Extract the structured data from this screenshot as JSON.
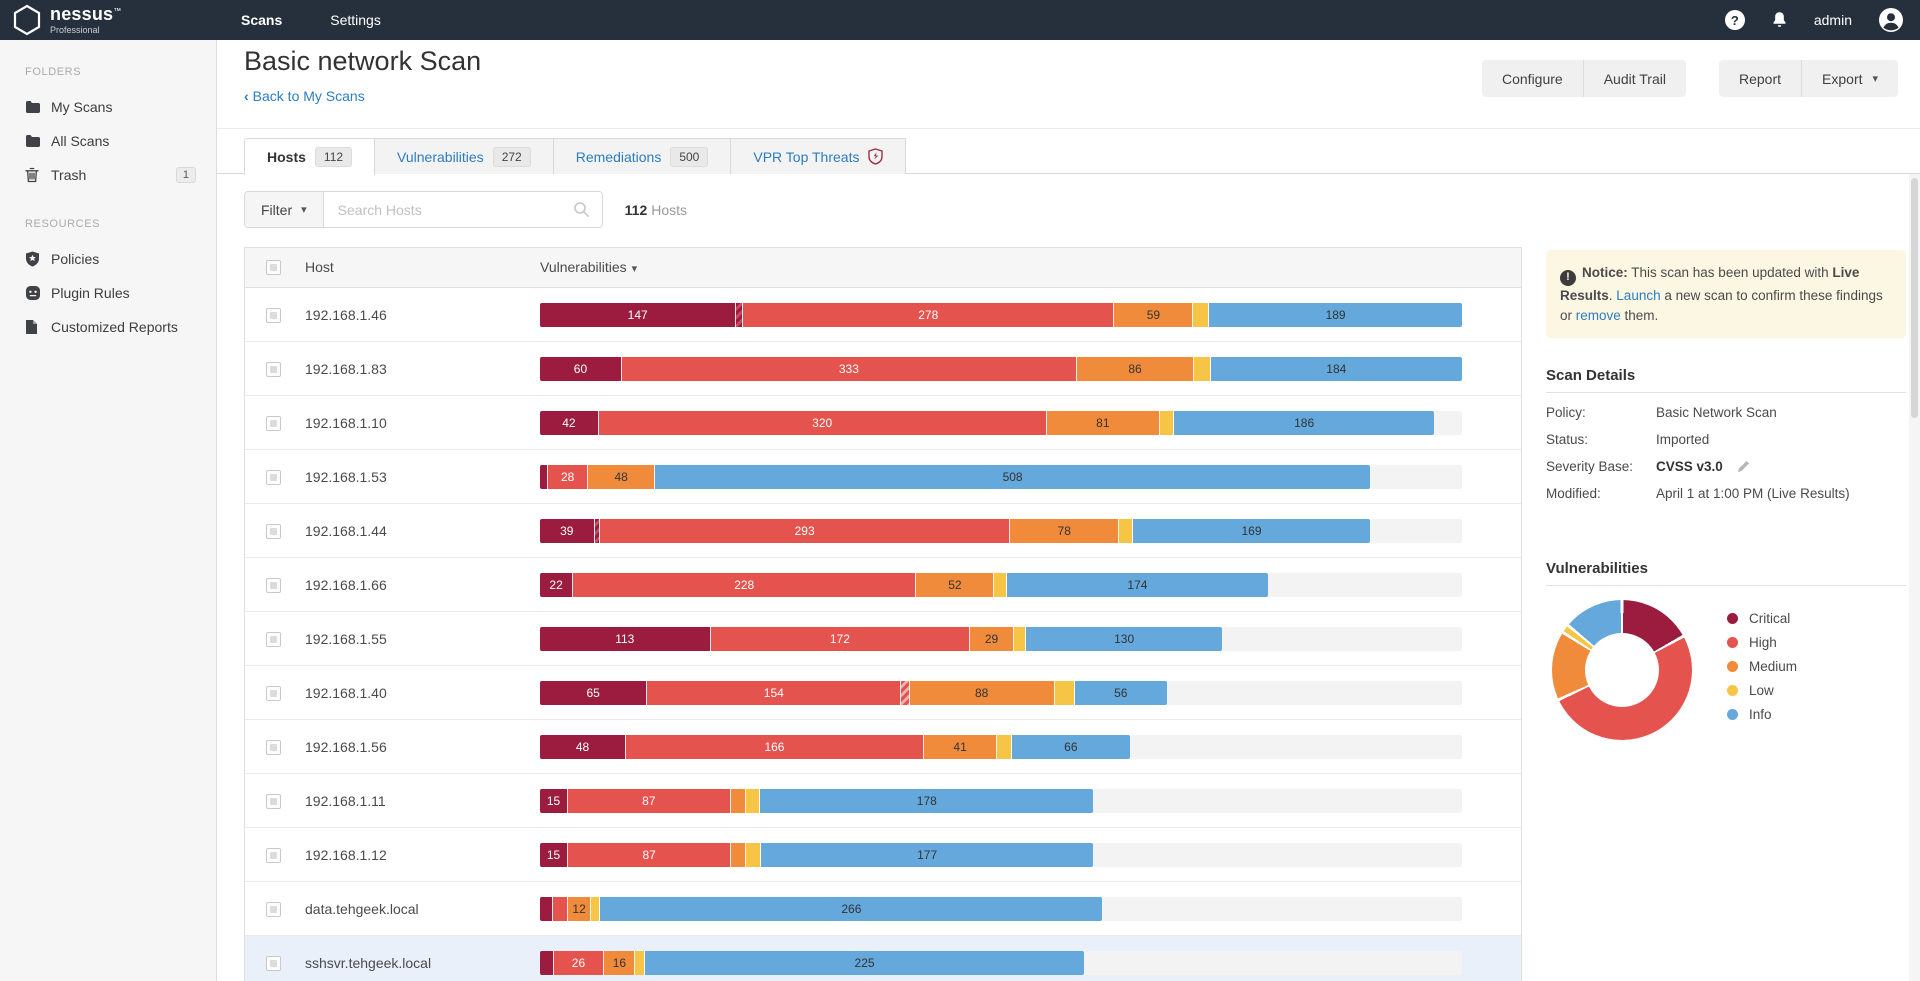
{
  "navbar": {
    "brand": "nessus",
    "brand_mark": "™",
    "brand_sub": "Professional",
    "links": [
      {
        "label": "Scans",
        "active": true
      },
      {
        "label": "Settings",
        "active": false
      }
    ],
    "username": "admin"
  },
  "sidebar": {
    "sections": [
      {
        "label": "FOLDERS",
        "items": [
          {
            "icon": "folder-icon",
            "label": "My Scans",
            "badge": ""
          },
          {
            "icon": "folder-icon",
            "label": "All Scans",
            "badge": ""
          },
          {
            "icon": "trash-icon",
            "label": "Trash",
            "badge": "1"
          }
        ]
      },
      {
        "label": "RESOURCES",
        "items": [
          {
            "icon": "shield-star-icon",
            "label": "Policies",
            "badge": ""
          },
          {
            "icon": "plug-icon",
            "label": "Plugin Rules",
            "badge": ""
          },
          {
            "icon": "document-icon",
            "label": "Customized Reports",
            "badge": ""
          }
        ]
      }
    ]
  },
  "header": {
    "title": "Basic network Scan",
    "back_chevron": "‹",
    "back_label": "Back to My Scans",
    "buttons_group1": [
      "Configure",
      "Audit Trail"
    ],
    "buttons_group2": [
      "Report",
      "Export"
    ],
    "export_caret": "▾"
  },
  "tabs": [
    {
      "label": "Hosts",
      "badge": "112",
      "active": true,
      "icon": ""
    },
    {
      "label": "Vulnerabilities",
      "badge": "272",
      "active": false,
      "icon": ""
    },
    {
      "label": "Remediations",
      "badge": "500",
      "active": false,
      "icon": ""
    },
    {
      "label": "VPR Top Threats",
      "badge": "",
      "active": false,
      "icon": "vpr-shield-icon"
    }
  ],
  "filter_bar": {
    "filter_label": "Filter",
    "caret": "▾",
    "search_placeholder": "Search Hosts",
    "count": "112",
    "count_suffix": "Hosts"
  },
  "table": {
    "header": {
      "host": "Host",
      "vulnerabilities": "Vulnerabilities",
      "sort_caret": "▾"
    },
    "rows": [
      {
        "host": "192.168.1.46",
        "bar_pct": 100,
        "highlighted": false,
        "segments": [
          {
            "sev": "critical",
            "value": 147,
            "label": "147"
          },
          {
            "sev": "hatch-ch",
            "value": 5,
            "label": ""
          },
          {
            "sev": "high",
            "value": 278,
            "label": "278"
          },
          {
            "sev": "medium",
            "value": 59,
            "label": "59"
          },
          {
            "sev": "low",
            "value": 12,
            "label": ""
          },
          {
            "sev": "info",
            "value": 189,
            "label": "189"
          }
        ]
      },
      {
        "host": "192.168.1.83",
        "bar_pct": 100,
        "highlighted": false,
        "segments": [
          {
            "sev": "critical",
            "value": 60,
            "label": "60"
          },
          {
            "sev": "high",
            "value": 333,
            "label": "333"
          },
          {
            "sev": "medium",
            "value": 86,
            "label": "86"
          },
          {
            "sev": "low",
            "value": 12,
            "label": ""
          },
          {
            "sev": "info",
            "value": 184,
            "label": "184"
          }
        ]
      },
      {
        "host": "192.168.1.10",
        "bar_pct": 97,
        "highlighted": false,
        "segments": [
          {
            "sev": "critical",
            "value": 42,
            "label": "42"
          },
          {
            "sev": "high",
            "value": 320,
            "label": "320"
          },
          {
            "sev": "medium",
            "value": 81,
            "label": "81"
          },
          {
            "sev": "low",
            "value": 10,
            "label": ""
          },
          {
            "sev": "info",
            "value": 186,
            "label": "186"
          }
        ]
      },
      {
        "host": "192.168.1.53",
        "bar_pct": 90,
        "highlighted": false,
        "segments": [
          {
            "sev": "critical",
            "value": 6,
            "label": ""
          },
          {
            "sev": "high",
            "value": 28,
            "label": "28"
          },
          {
            "sev": "medium",
            "value": 48,
            "label": "48"
          },
          {
            "sev": "info",
            "value": 508,
            "label": "508"
          }
        ]
      },
      {
        "host": "192.168.1.44",
        "bar_pct": 90,
        "highlighted": false,
        "segments": [
          {
            "sev": "critical",
            "value": 39,
            "label": "39"
          },
          {
            "sev": "hatch-ch",
            "value": 4,
            "label": ""
          },
          {
            "sev": "high",
            "value": 293,
            "label": "293"
          },
          {
            "sev": "medium",
            "value": 78,
            "label": "78"
          },
          {
            "sev": "low",
            "value": 10,
            "label": ""
          },
          {
            "sev": "info",
            "value": 169,
            "label": "169"
          }
        ]
      },
      {
        "host": "192.168.1.66",
        "bar_pct": 79,
        "highlighted": false,
        "segments": [
          {
            "sev": "critical",
            "value": 22,
            "label": "22"
          },
          {
            "sev": "high",
            "value": 228,
            "label": "228"
          },
          {
            "sev": "medium",
            "value": 52,
            "label": "52"
          },
          {
            "sev": "low",
            "value": 8,
            "label": ""
          },
          {
            "sev": "info",
            "value": 174,
            "label": "174"
          }
        ]
      },
      {
        "host": "192.168.1.55",
        "bar_pct": 74,
        "highlighted": false,
        "segments": [
          {
            "sev": "critical",
            "value": 113,
            "label": "113"
          },
          {
            "sev": "high",
            "value": 172,
            "label": "172"
          },
          {
            "sev": "medium",
            "value": 29,
            "label": "29"
          },
          {
            "sev": "low",
            "value": 8,
            "label": ""
          },
          {
            "sev": "info",
            "value": 130,
            "label": "130"
          }
        ]
      },
      {
        "host": "192.168.1.40",
        "bar_pct": 68,
        "highlighted": false,
        "segments": [
          {
            "sev": "critical",
            "value": 65,
            "label": "65"
          },
          {
            "sev": "high",
            "value": 154,
            "label": "154"
          },
          {
            "sev": "hatch-hm",
            "value": 5,
            "label": ""
          },
          {
            "sev": "medium",
            "value": 88,
            "label": "88"
          },
          {
            "sev": "low",
            "value": 12,
            "label": ""
          },
          {
            "sev": "info",
            "value": 56,
            "label": "56"
          }
        ]
      },
      {
        "host": "192.168.1.56",
        "bar_pct": 64,
        "highlighted": false,
        "segments": [
          {
            "sev": "critical",
            "value": 48,
            "label": "48"
          },
          {
            "sev": "high",
            "value": 166,
            "label": "166"
          },
          {
            "sev": "medium",
            "value": 41,
            "label": "41"
          },
          {
            "sev": "low",
            "value": 8,
            "label": ""
          },
          {
            "sev": "info",
            "value": 66,
            "label": "66"
          }
        ]
      },
      {
        "host": "192.168.1.11",
        "bar_pct": 60,
        "highlighted": false,
        "segments": [
          {
            "sev": "critical",
            "value": 15,
            "label": "15"
          },
          {
            "sev": "high",
            "value": 87,
            "label": "87"
          },
          {
            "sev": "medium",
            "value": 8,
            "label": ""
          },
          {
            "sev": "low",
            "value": 8,
            "label": ""
          },
          {
            "sev": "info",
            "value": 178,
            "label": "178"
          }
        ]
      },
      {
        "host": "192.168.1.12",
        "bar_pct": 60,
        "highlighted": false,
        "segments": [
          {
            "sev": "critical",
            "value": 15,
            "label": "15"
          },
          {
            "sev": "high",
            "value": 87,
            "label": "87"
          },
          {
            "sev": "medium",
            "value": 8,
            "label": ""
          },
          {
            "sev": "low",
            "value": 8,
            "label": ""
          },
          {
            "sev": "info",
            "value": 177,
            "label": "177"
          }
        ]
      },
      {
        "host": "data.tehgeek.local",
        "bar_pct": 61,
        "highlighted": false,
        "segments": [
          {
            "sev": "critical",
            "value": 7,
            "label": ""
          },
          {
            "sev": "high",
            "value": 8,
            "label": ""
          },
          {
            "sev": "medium",
            "value": 12,
            "label": "12"
          },
          {
            "sev": "low",
            "value": 5,
            "label": ""
          },
          {
            "sev": "info",
            "value": 266,
            "label": "266"
          }
        ]
      },
      {
        "host": "sshsvr.tehgeek.local",
        "bar_pct": 59,
        "highlighted": true,
        "segments": [
          {
            "sev": "critical",
            "value": 7,
            "label": ""
          },
          {
            "sev": "high",
            "value": 26,
            "label": "26"
          },
          {
            "sev": "medium",
            "value": 16,
            "label": "16"
          },
          {
            "sev": "low",
            "value": 5,
            "label": ""
          },
          {
            "sev": "info",
            "value": 225,
            "label": "225"
          }
        ]
      }
    ]
  },
  "severity_colors": {
    "critical": "#9b1c3e",
    "high": "#e4534e",
    "medium": "#ef8b3b",
    "low": "#f6c545",
    "info": "#64a8dc",
    "track": "#f3f3f3"
  },
  "right_panel": {
    "notice": {
      "label": "Notice:",
      "text1": " This scan has been updated with ",
      "bold": "Live Results",
      "text2": ". ",
      "link1": "Launch",
      "text3": " a new scan to confirm these findings or ",
      "link2": "remove",
      "text4": " them."
    },
    "scan_details": {
      "title": "Scan Details",
      "rows": [
        {
          "label": "Policy:",
          "value": "Basic Network Scan",
          "bold": false,
          "edit": false
        },
        {
          "label": "Status:",
          "value": "Imported",
          "bold": false,
          "edit": false
        },
        {
          "label": "Severity Base:",
          "value": "CVSS v3.0",
          "bold": true,
          "edit": true
        },
        {
          "label": "Modified:",
          "value": "April 1 at 1:00 PM (Live Results)",
          "bold": false,
          "edit": false
        }
      ]
    },
    "vulnerabilities_title": "Vulnerabilities"
  },
  "chart_data": {
    "type": "pie",
    "subtype": "donut",
    "title": "Vulnerabilities",
    "labels": [
      "Critical",
      "High",
      "Medium",
      "Low",
      "Info"
    ],
    "values_pct": [
      17,
      51,
      16,
      2,
      14
    ],
    "colors": [
      "#9b1c3e",
      "#e4534e",
      "#ef8b3b",
      "#f6c545",
      "#64a8dc"
    ],
    "legend_position": "right"
  }
}
